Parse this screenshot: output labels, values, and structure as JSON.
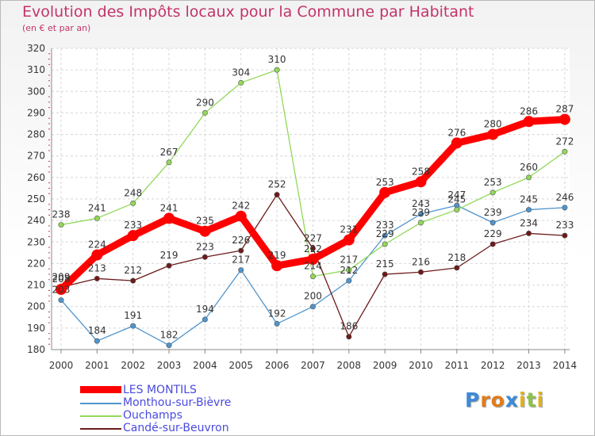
{
  "chart_data": {
    "type": "line",
    "title": "Evolution des Impôts locaux pour la Commune par Habitant",
    "subtitle": "(en € et par an)",
    "xlabel": "",
    "ylabel": "",
    "x": [
      "2000",
      "2001",
      "2002",
      "2003",
      "2004",
      "2005",
      "2006",
      "2007",
      "2008",
      "2009",
      "2010",
      "2011",
      "2012",
      "2013",
      "2014"
    ],
    "ylim": [
      180,
      320
    ],
    "yticks": [
      "180",
      "190",
      "200",
      "210",
      "220",
      "230",
      "240",
      "250",
      "260",
      "270",
      "280",
      "290",
      "300",
      "310",
      "320"
    ],
    "grid": true,
    "legend_position": "bottom-left",
    "series": [
      {
        "name": "LES MONTILS",
        "color": "#ff0000",
        "emphasis": true,
        "values": [
          208,
          224,
          233,
          241,
          235,
          242,
          219,
          222,
          231,
          253,
          258,
          276,
          280,
          286,
          287
        ]
      },
      {
        "name": "Monthou-sur-Bièvre",
        "color": "#4f95cd",
        "emphasis": false,
        "values": [
          203,
          184,
          191,
          182,
          194,
          217,
          192,
          200,
          212,
          233,
          243,
          247,
          239,
          245,
          246
        ]
      },
      {
        "name": "Ouchamps",
        "color": "#92d85a",
        "emphasis": false,
        "values": [
          238,
          241,
          248,
          267,
          290,
          304,
          310,
          214,
          217,
          229,
          239,
          245,
          253,
          260,
          272
        ]
      },
      {
        "name": "Candé-sur-Beuvron",
        "color": "#6d1a1a",
        "emphasis": false,
        "values": [
          209,
          213,
          212,
          219,
          223,
          226,
          252,
          227,
          186,
          215,
          216,
          218,
          229,
          234,
          233
        ]
      }
    ]
  },
  "logo": {
    "letters": [
      "P",
      "r",
      "o",
      "x",
      "i",
      "t",
      "i"
    ],
    "colors": [
      "#3b8ad8",
      "#e07c1c",
      "#e07c1c",
      "#3b8ad8",
      "#e0b21c",
      "#8bc34a",
      "#e0b21c"
    ]
  }
}
